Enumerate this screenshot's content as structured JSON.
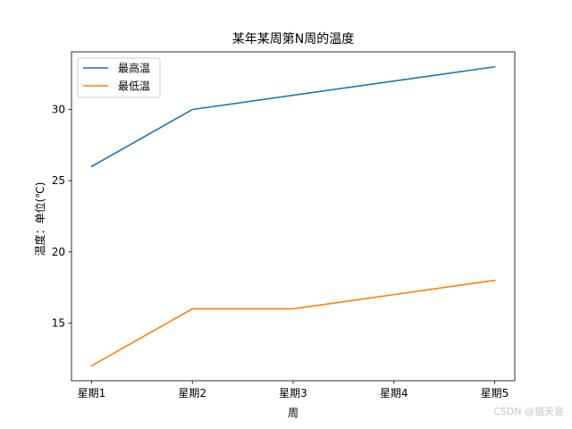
{
  "chart_data": {
    "type": "line",
    "title": "某年某周第N周的温度",
    "xlabel": "周",
    "ylabel": "温度：单位(℃)",
    "categories": [
      "星期1",
      "星期2",
      "星期3",
      "星期4",
      "星期5"
    ],
    "series": [
      {
        "name": "最高温",
        "values": [
          26,
          30,
          31,
          32,
          33
        ],
        "color": "#1f77b4"
      },
      {
        "name": "最低温",
        "values": [
          12,
          16,
          16,
          17,
          18
        ],
        "color": "#ff7f0e"
      }
    ],
    "ylim": [
      10.95,
      34.05
    ],
    "yticks": [
      15,
      20,
      25,
      30
    ],
    "grid": false,
    "legend": "upper-left"
  },
  "watermark": "CSDN @猫天意"
}
